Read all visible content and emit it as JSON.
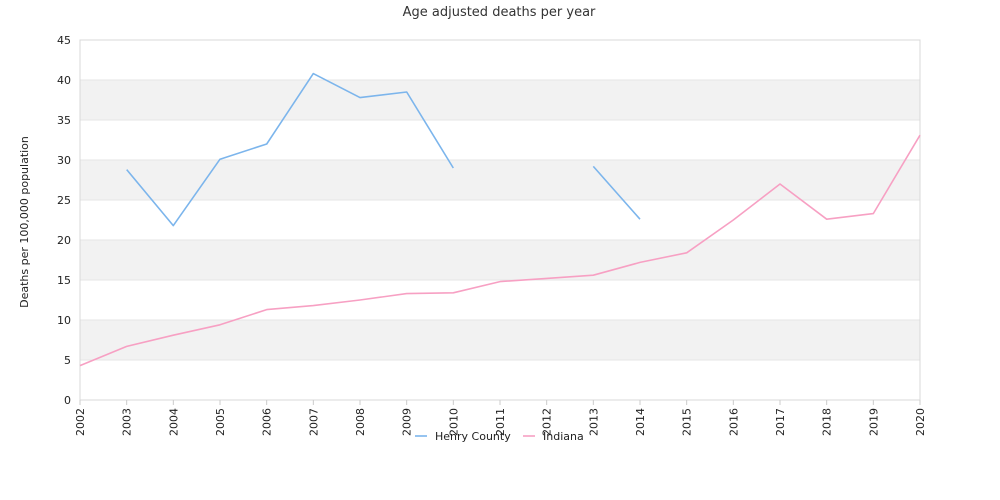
{
  "chart_data": {
    "type": "line",
    "title": "Age adjusted deaths per year",
    "xlabel": "",
    "ylabel": "Deaths per 100,000 population",
    "x": [
      "2002",
      "2003",
      "2004",
      "2005",
      "2006",
      "2007",
      "2008",
      "2009",
      "2010",
      "2011",
      "2012",
      "2013",
      "2014",
      "2015",
      "2016",
      "2017",
      "2018",
      "2019",
      "2020"
    ],
    "ylim": [
      0,
      45
    ],
    "yticks": [
      0,
      5,
      10,
      15,
      20,
      25,
      30,
      35,
      40,
      45
    ],
    "grid": "horizontal alternating bands",
    "legend_position": "bottom",
    "series": [
      {
        "name": "Henry County",
        "color": "#7cb5ec",
        "values": [
          null,
          28.8,
          21.8,
          30.1,
          32.0,
          40.8,
          37.8,
          38.5,
          29.0,
          null,
          null,
          29.2,
          22.6,
          null,
          null,
          null,
          null,
          null,
          null
        ]
      },
      {
        "name": "Indiana",
        "color": "#f7a0c3",
        "values": [
          4.3,
          6.7,
          8.1,
          9.4,
          11.3,
          11.8,
          12.5,
          13.3,
          13.4,
          14.8,
          15.2,
          15.6,
          17.2,
          18.4,
          22.5,
          27.0,
          22.6,
          23.3,
          33.1
        ]
      }
    ]
  }
}
